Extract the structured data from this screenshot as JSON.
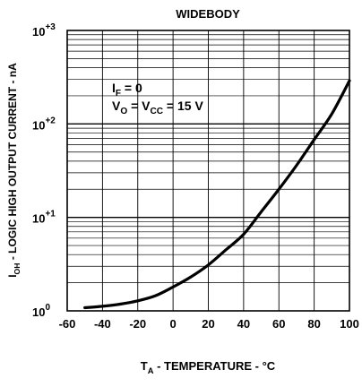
{
  "chart_data": {
    "type": "line",
    "title": "WIDEBODY",
    "ylabel": {
      "prefix": "I",
      "sub": "OH",
      "rest": " - LOGIC HIGH OUTPUT CURRENT - nA"
    },
    "xlabel": {
      "prefix": "T",
      "sub": "A",
      "rest": " - TEMPERATURE - °C"
    },
    "x_ticks": [
      "-60",
      "-40",
      "-20",
      "0",
      "20",
      "40",
      "60",
      "80",
      "100"
    ],
    "y_ticks": [
      {
        "base": "10",
        "exp": "0"
      },
      {
        "base": "10",
        "exp": "+1"
      },
      {
        "base": "10",
        "exp": "+2"
      },
      {
        "base": "10",
        "exp": "+3"
      }
    ],
    "xlim": [
      -60,
      100
    ],
    "ylim": [
      1,
      1000
    ],
    "y_scale": "log",
    "grid": true,
    "annotations": [
      {
        "parts": [
          {
            "t": "I"
          },
          {
            "t": "F",
            "sub": true
          },
          {
            "t": " = 0"
          }
        ]
      },
      {
        "parts": [
          {
            "t": "V"
          },
          {
            "t": "O",
            "sub": true
          },
          {
            "t": " = V"
          },
          {
            "t": "CC",
            "sub": true
          },
          {
            "t": " = 15 V"
          }
        ]
      }
    ],
    "series": [
      {
        "x": [
          -50,
          -40,
          -30,
          -20,
          -10,
          0,
          10,
          20,
          30,
          40,
          50,
          60,
          70,
          80,
          90,
          100
        ],
        "values": [
          1.08,
          1.12,
          1.18,
          1.28,
          1.45,
          1.8,
          2.3,
          3.1,
          4.5,
          6.6,
          11.5,
          20,
          36,
          68,
          128,
          290
        ]
      }
    ]
  }
}
